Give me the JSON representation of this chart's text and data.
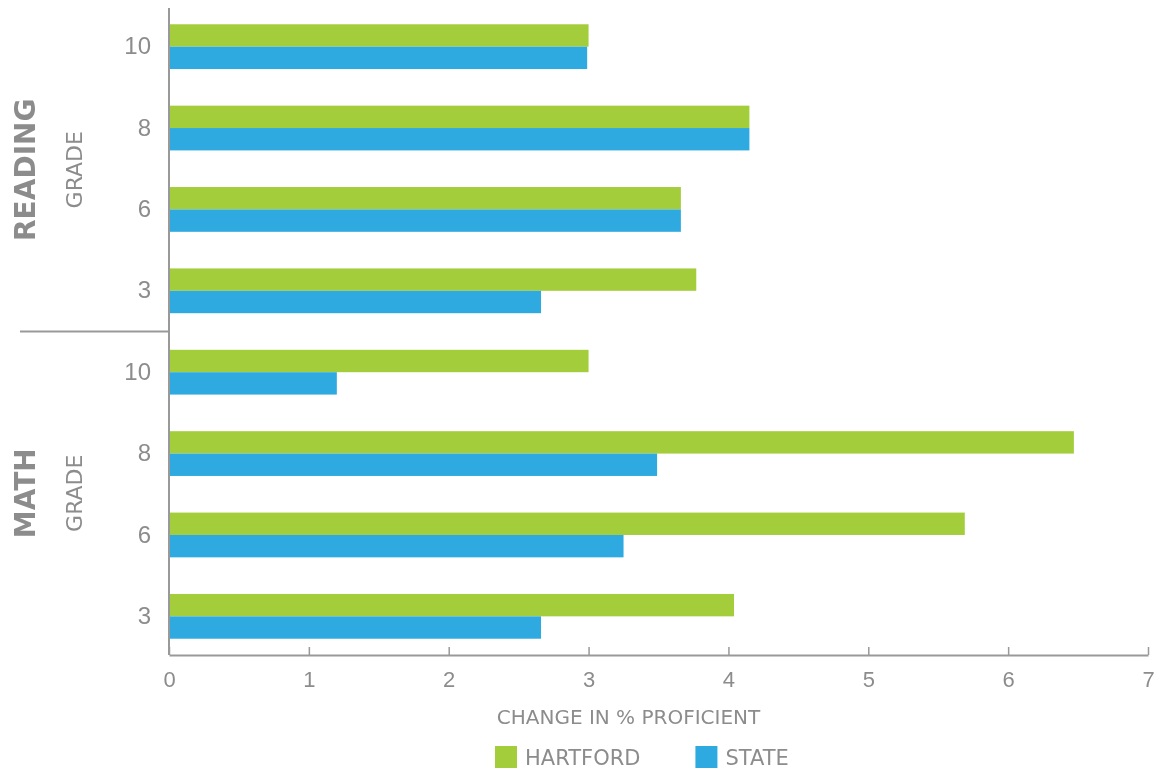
{
  "chart_data": {
    "type": "bar",
    "orientation": "horizontal",
    "xlabel": "CHANGE IN % PROFICIENT",
    "categories": [
      "10",
      "8",
      "6",
      "3",
      "10",
      "8",
      "6",
      "3"
    ],
    "series": [
      {
        "name": "HARTFORD",
        "color": "#a4cd3c",
        "values": [
          3.0,
          4.15,
          3.66,
          3.77,
          3.0,
          6.47,
          5.69,
          4.04
        ]
      },
      {
        "name": "STATE",
        "color": "#2eaae1",
        "values": [
          2.99,
          4.15,
          3.66,
          2.66,
          1.2,
          3.49,
          3.25,
          2.66
        ]
      }
    ],
    "xlim": [
      0,
      7
    ],
    "xticks": [
      0,
      1,
      2,
      3,
      4,
      5,
      6,
      7
    ],
    "grid": false,
    "legend": "bottom",
    "annotations": [
      "READING",
      "GRADE",
      "MATH",
      "GRADE"
    ]
  }
}
